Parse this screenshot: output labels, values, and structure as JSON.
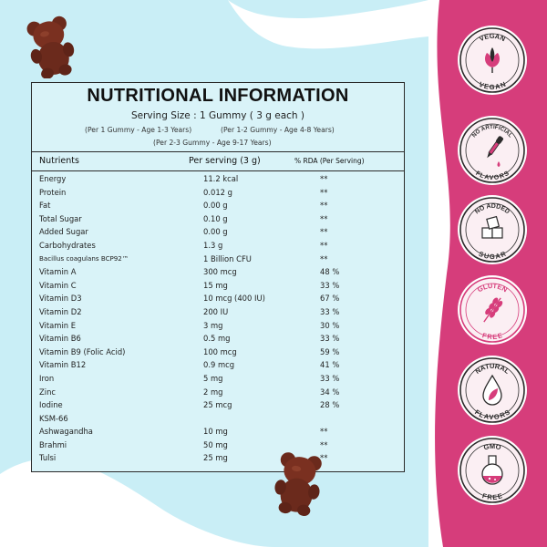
{
  "table": {
    "title": "NUTRITIONAL INFORMATION",
    "serving_size": "Serving Size : 1 Gummy ( 3 g each )",
    "age_notes": [
      "(Per 1 Gummy - Age 1-3 Years)",
      "(Per 1-2  Gummy - Age 4-8 Years)",
      "(Per 2-3 Gummy - Age 9-17 Years)"
    ],
    "headers": {
      "nutrients": "Nutrients",
      "per_serving": "Per serving (3 g)",
      "rda": "% RDA (Per Serving)"
    },
    "rows": [
      {
        "name": "Energy",
        "amount": "11.2 kcal",
        "rda": "**"
      },
      {
        "name": "Protein",
        "amount": "0.012 g",
        "rda": "**"
      },
      {
        "name": "Fat",
        "amount": "0.00 g",
        "rda": "**"
      },
      {
        "name": "Total Sugar",
        "amount": "0.10 g",
        "rda": "**"
      },
      {
        "name": "Added Sugar",
        "amount": "0.00 g",
        "rda": "**"
      },
      {
        "name": "Carbohydrates",
        "amount": "1.3 g",
        "rda": "**"
      },
      {
        "name": "Bacillus coagulans BCP92™",
        "amount": "1 Billion CFU",
        "rda": "**"
      },
      {
        "name": "Vitamin A",
        "amount": "300 mcg",
        "rda": "48 %"
      },
      {
        "name": "Vitamin C",
        "amount": "15 mg",
        "rda": "33 %"
      },
      {
        "name": "Vitamin D3",
        "amount": "10 mcg (400 IU)",
        "rda": "67 %"
      },
      {
        "name": "Vitamin D2",
        "amount": "200 IU",
        "rda": "33 %"
      },
      {
        "name": "Vitamin E",
        "amount": "3 mg",
        "rda": "30 %"
      },
      {
        "name": "Vitamin B6",
        "amount": "0.5 mg",
        "rda": "33 %"
      },
      {
        "name": "Vitamin B9 (Folic Acid)",
        "amount": "100 mcg",
        "rda": "59 %"
      },
      {
        "name": "Vitamin B12",
        "amount": "0.9 mcg",
        "rda": "41 %"
      },
      {
        "name": "Iron",
        "amount": "5 mg",
        "rda": "33 %"
      },
      {
        "name": "Zinc",
        "amount": "2 mg",
        "rda": "34 %"
      },
      {
        "name": "Iodine",
        "amount": "25 mcg",
        "rda": "28 %"
      },
      {
        "name": "KSM-66",
        "amount": "",
        "rda": ""
      },
      {
        "name": "Ashwagandha",
        "amount": "10 mg",
        "rda": "**"
      },
      {
        "name": "Brahmi",
        "amount": "50 mg",
        "rda": "**"
      },
      {
        "name": "Tulsi",
        "amount": "25 mg",
        "rda": "**"
      }
    ]
  },
  "badges": [
    {
      "top": "VEGAN",
      "bottom": "VEGAN",
      "icon": "leaf-icon"
    },
    {
      "top": "NO ARTIFICIAL",
      "bottom": "FLAVORS",
      "icon": "dropper-icon"
    },
    {
      "top": "NO ADDED",
      "bottom": "SUGAR",
      "icon": "sugar-cubes-icon"
    },
    {
      "top": "GLUTEN",
      "bottom": "FREE",
      "icon": "wheat-icon"
    },
    {
      "top": "NATURAL",
      "bottom": "FLAVORS",
      "icon": "drop-leaf-icon"
    },
    {
      "top": "GMO",
      "bottom": "FREE",
      "icon": "flask-icon"
    }
  ],
  "colors": {
    "pink": "#d63d7b",
    "light_blue": "#c9eef6",
    "card_bg": "#d9f3f8",
    "bear": "#6b2a1c",
    "badge_ring": "#2b2b2b",
    "badge_accent": "#d63d7b"
  }
}
